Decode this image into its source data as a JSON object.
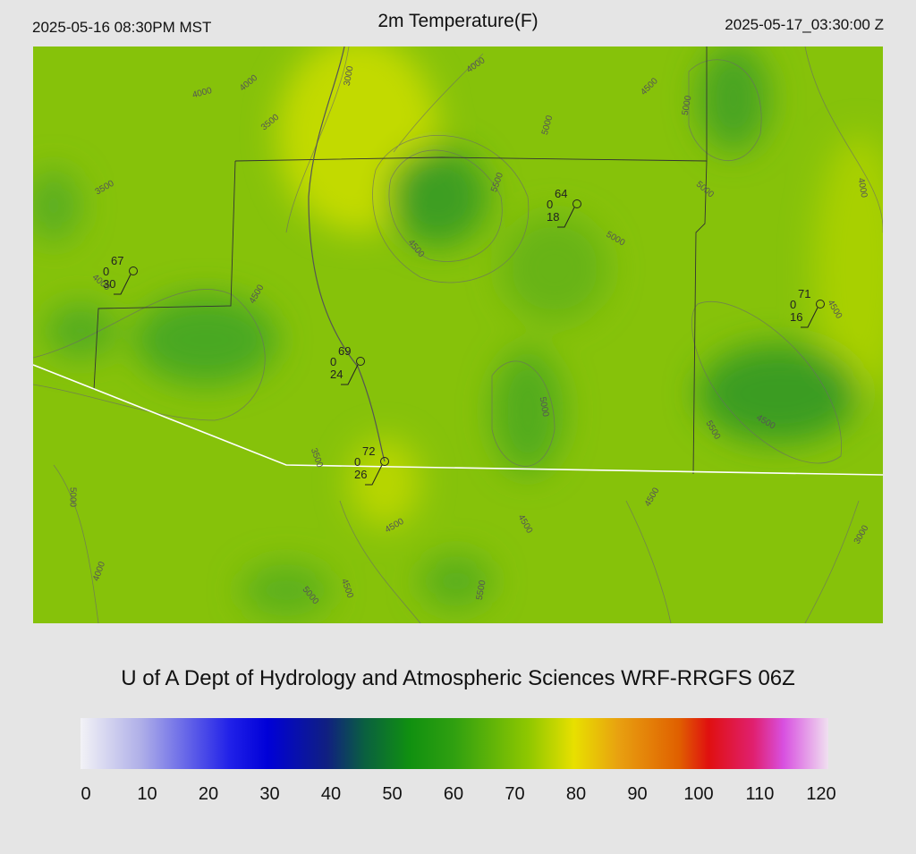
{
  "header": {
    "left": "2025-05-16 08:30PM MST",
    "title": "2m Temperature(F)",
    "right": "2025-05-17_03:30:00 Z"
  },
  "map": {
    "contour_labels": [
      "4000",
      "4000",
      "3000",
      "4000",
      "4500",
      "5000",
      "3500",
      "5000",
      "3500",
      "5500",
      "5000",
      "4000",
      "4500",
      "5000",
      "4000",
      "4500",
      "4500",
      "5000",
      "5500",
      "4500",
      "3500",
      "5000",
      "4500",
      "4500",
      "4500",
      "3000",
      "4000",
      "4500",
      "5000",
      "5500"
    ],
    "stations": [
      {
        "temperature": 67,
        "wind": 0,
        "dewpoint": 30
      },
      {
        "temperature": 69,
        "wind": 0,
        "dewpoint": 24
      },
      {
        "temperature": 72,
        "wind": 0,
        "dewpoint": 26
      },
      {
        "temperature": 64,
        "wind": 0,
        "dewpoint": 18
      },
      {
        "temperature": 71,
        "wind": 0,
        "dewpoint": 16
      }
    ]
  },
  "footer": {
    "credit": "U of A Dept of Hydrology and Atmospheric Sciences WRF-RRGFS 06Z",
    "colorbar_ticks": [
      0,
      10,
      20,
      30,
      40,
      50,
      60,
      70,
      80,
      90,
      100,
      110,
      120
    ]
  }
}
